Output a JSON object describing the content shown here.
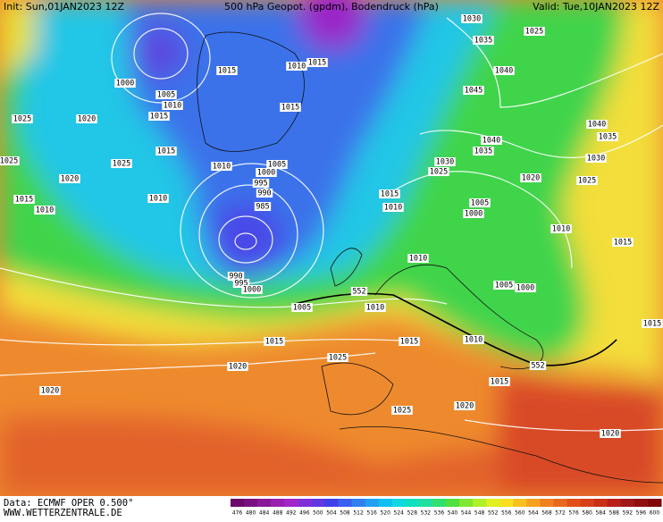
{
  "header": {
    "init": "Init: Sun,01JAN2023 12Z",
    "title": "500 hPa Geopot. (gpdm), Bodendruck (hPa)",
    "valid": "Valid: Tue,10JAN2023 12Z"
  },
  "footer": {
    "data": "Data: ECMWF OPER 0.500°",
    "site": "WWW.WETTERZENTRALE.DE"
  },
  "colorbar": {
    "labels": [
      "476",
      "480",
      "484",
      "488",
      "492",
      "496",
      "500",
      "504",
      "508",
      "512",
      "516",
      "520",
      "524",
      "528",
      "532",
      "536",
      "540",
      "544",
      "548",
      "552",
      "556",
      "560",
      "564",
      "568",
      "572",
      "576",
      "580",
      "584",
      "588",
      "592",
      "596",
      "600"
    ],
    "colors": [
      "#6a0a6a",
      "#7a1080",
      "#8a1898",
      "#9820b0",
      "#a028c8",
      "#8030d8",
      "#6038e0",
      "#4040e8",
      "#3a60f0",
      "#3080f0",
      "#20a0f0",
      "#10c0f0",
      "#10d8e0",
      "#10e0c0",
      "#20e0a0",
      "#30e070",
      "#50e040",
      "#80e830",
      "#b0f028",
      "#e0f020",
      "#f8e020",
      "#f8c020",
      "#f8a020",
      "#f08020",
      "#e86820",
      "#e05018",
      "#d84018",
      "#c83018",
      "#b82018",
      "#a01818",
      "#901010",
      "#800808"
    ]
  },
  "isobar_labels": [
    "1015",
    "1000",
    "1005",
    "1010",
    "1015",
    "1020",
    "1025",
    "1025",
    "1025",
    "1015",
    "1010",
    "1005",
    "1000",
    "995",
    "990",
    "985",
    "1010",
    "1020",
    "1015",
    "1010",
    "1010",
    "1015",
    "1015",
    "1030",
    "1025",
    "1035",
    "1040",
    "1045",
    "1040",
    "1035",
    "1030",
    "1025",
    "1015",
    "1020",
    "1010",
    "1005",
    "1000",
    "1010",
    "1010",
    "990",
    "995",
    "1000",
    "1005",
    "1010",
    "552",
    "1015",
    "1015",
    "1010",
    "552",
    "1020",
    "1025",
    "1020",
    "1025",
    "1015",
    "1020",
    "1020",
    "1040",
    "1035",
    "1030",
    "1025",
    "1015",
    "1015",
    "1005",
    "1000"
  ]
}
